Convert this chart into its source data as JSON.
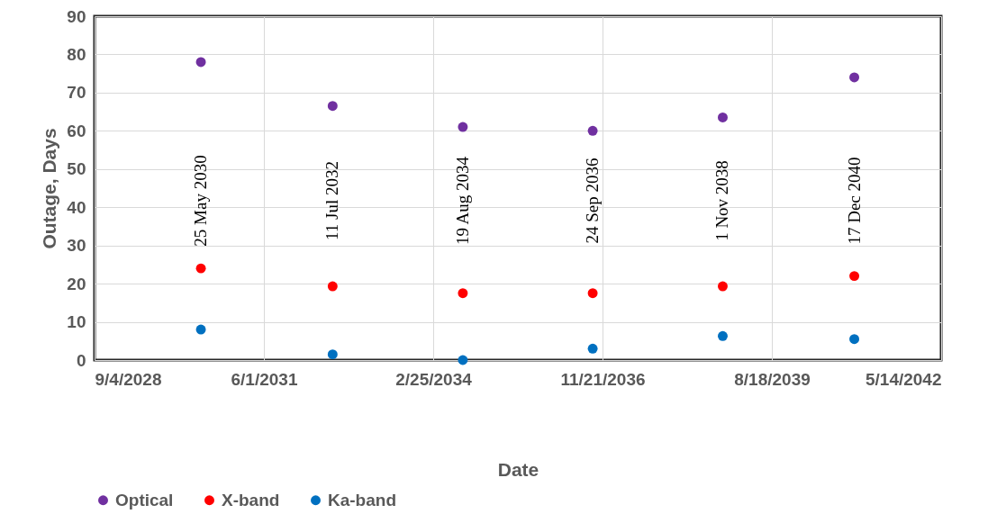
{
  "chart_data": {
    "type": "scatter",
    "xlabel": "Date",
    "ylabel": "Outage, Days",
    "x": [
      "2030-05-25",
      "2032-07-11",
      "2034-08-19",
      "2036-09-24",
      "2038-11-01",
      "2040-12-17"
    ],
    "series": [
      {
        "name": "Optical",
        "color": "#7030a0",
        "values": [
          78,
          66.5,
          61,
          60,
          63.5,
          74
        ]
      },
      {
        "name": "X-band",
        "color": "#ff0000",
        "values": [
          24,
          19.3,
          17.5,
          17.5,
          19.3,
          22
        ]
      },
      {
        "name": "Ka-band",
        "color": "#0070c0",
        "values": [
          8,
          1.5,
          0,
          3,
          6.3,
          5.5
        ]
      }
    ],
    "xlim": [
      "2028-09-04",
      "2042-05-14"
    ],
    "xticks": [
      {
        "value": "2028-09-04",
        "label": "9/4/2028"
      },
      {
        "value": "2031-06-01",
        "label": "6/1/2031"
      },
      {
        "value": "2034-02-25",
        "label": "2/25/2034"
      },
      {
        "value": "2036-11-21",
        "label": "11/21/2036"
      },
      {
        "value": "2039-08-18",
        "label": "8/18/2039"
      },
      {
        "value": "2042-05-14",
        "label": "5/14/2042"
      }
    ],
    "ylim": [
      0,
      90
    ],
    "yticks": [
      0,
      10,
      20,
      30,
      40,
      50,
      60,
      70,
      80,
      90
    ],
    "annotations": [
      "25 May 2030",
      "11 Jul 2032",
      "19 Aug 2034",
      "24 Sep 2036",
      "1 Nov 2038",
      "17 Dec 2040"
    ],
    "grid": true,
    "legend": "bottom",
    "marker": "circle"
  }
}
